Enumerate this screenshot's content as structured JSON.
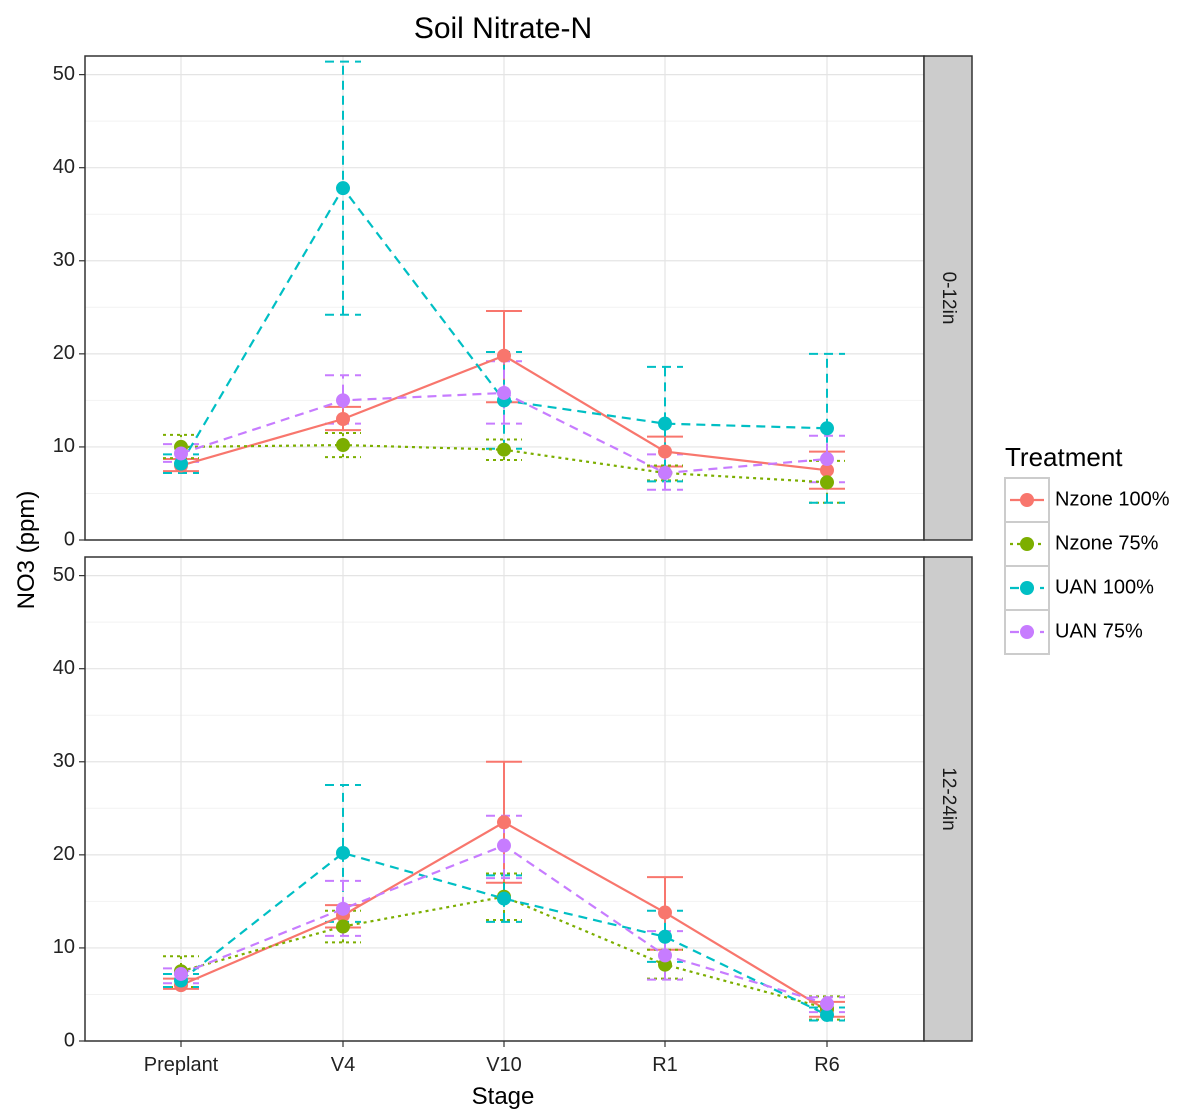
{
  "chart_data": {
    "type": "line",
    "title": "Soil Nitrate-N",
    "xlabel": "Stage",
    "ylabel": "NO3 (ppm)",
    "categories": [
      "Preplant",
      "V4",
      "V10",
      "R1",
      "R6"
    ],
    "ylim": [
      0,
      52
    ],
    "yticks": [
      "0",
      "10",
      "20",
      "30",
      "40",
      "50"
    ],
    "grid": true,
    "legend": {
      "title": "Treatment",
      "position": "right"
    },
    "facets": [
      {
        "label": "0-12in",
        "series": [
          {
            "name": "Nzone 100%",
            "color": "#F8766D",
            "linetype": "solid",
            "values": [
              8.0,
              13.0,
              19.8,
              9.5,
              7.5
            ],
            "lower": [
              7.4,
              11.8,
              14.8,
              7.9,
              5.5
            ],
            "upper": [
              8.7,
              14.3,
              24.6,
              11.1,
              9.5
            ]
          },
          {
            "name": "Nzone 75%",
            "color": "#7CAE00",
            "linetype": "dotted",
            "values": [
              10.0,
              10.2,
              9.7,
              7.2,
              6.2
            ],
            "lower": [
              8.8,
              8.9,
              8.6,
              6.4,
              4.0
            ],
            "upper": [
              11.3,
              11.5,
              10.8,
              8.0,
              8.5
            ]
          },
          {
            "name": "UAN 100%",
            "color": "#00BFC4",
            "linetype": "dashed",
            "values": [
              8.2,
              37.8,
              15.0,
              12.5,
              12.0
            ],
            "lower": [
              7.2,
              24.2,
              9.8,
              6.3,
              4.0
            ],
            "upper": [
              9.2,
              51.4,
              20.2,
              18.6,
              20.0
            ]
          },
          {
            "name": "UAN 75%",
            "color": "#C77CFF",
            "linetype": "dashed",
            "values": [
              9.3,
              15.0,
              15.8,
              7.2,
              8.7
            ],
            "lower": [
              8.4,
              12.5,
              12.5,
              5.4,
              6.2
            ],
            "upper": [
              10.3,
              17.7,
              19.2,
              9.2,
              11.2
            ]
          }
        ]
      },
      {
        "label": "12-24in",
        "series": [
          {
            "name": "Nzone 100%",
            "color": "#F8766D",
            "linetype": "solid",
            "values": [
              6.0,
              13.5,
              23.5,
              13.8,
              3.3
            ],
            "lower": [
              5.6,
              12.2,
              17.0,
              9.8,
              2.6
            ],
            "upper": [
              6.7,
              14.6,
              30.0,
              17.6,
              4.2
            ]
          },
          {
            "name": "Nzone 75%",
            "color": "#7CAE00",
            "linetype": "dotted",
            "values": [
              7.5,
              12.3,
              15.5,
              8.2,
              3.5
            ],
            "lower": [
              5.8,
              10.6,
              13.0,
              6.7,
              2.3
            ],
            "upper": [
              9.1,
              14.0,
              18.0,
              9.8,
              4.8
            ]
          },
          {
            "name": "UAN 100%",
            "color": "#00BFC4",
            "linetype": "dashed",
            "values": [
              6.5,
              20.2,
              15.3,
              11.2,
              2.8
            ],
            "lower": [
              5.8,
              12.8,
              12.8,
              8.5,
              2.2
            ],
            "upper": [
              7.2,
              27.5,
              17.8,
              14.0,
              3.6
            ]
          },
          {
            "name": "UAN 75%",
            "color": "#C77CFF",
            "linetype": "dashed",
            "values": [
              7.2,
              14.2,
              21.0,
              9.2,
              4.0
            ],
            "lower": [
              6.2,
              11.3,
              17.5,
              6.6,
              3.1
            ],
            "upper": [
              7.8,
              17.2,
              24.2,
              11.8,
              4.7
            ]
          }
        ]
      }
    ]
  }
}
